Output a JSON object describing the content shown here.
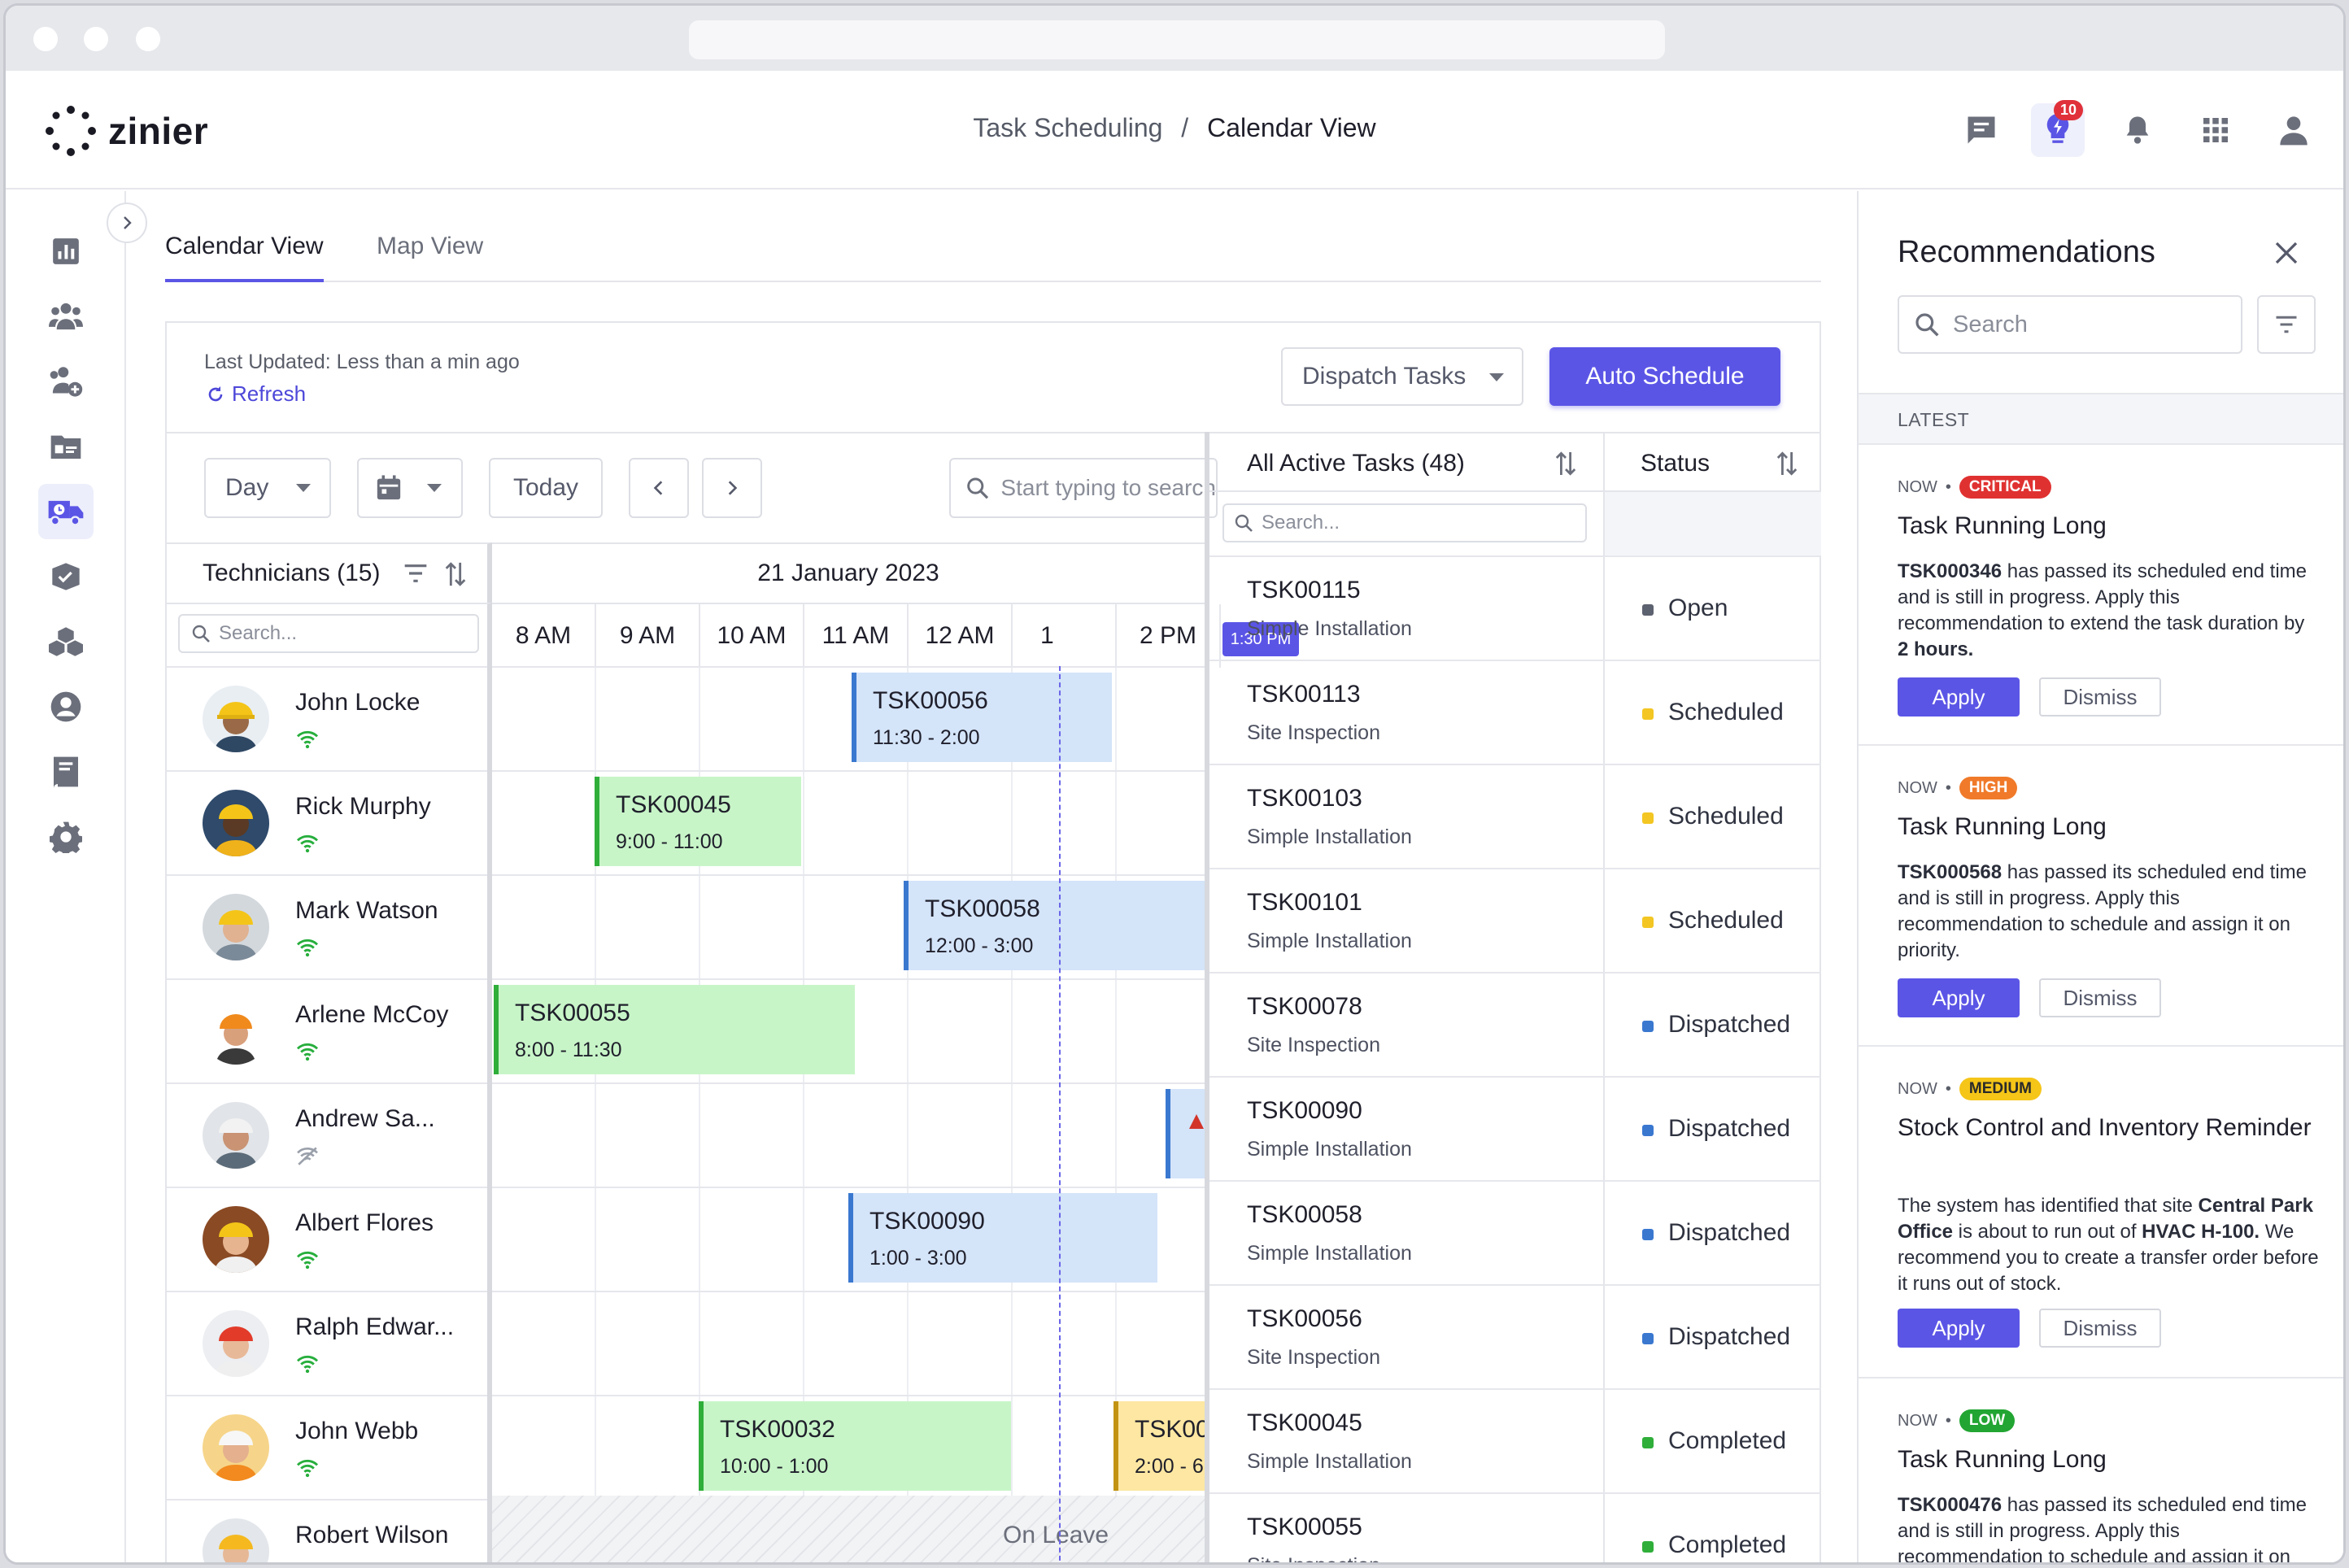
{
  "header": {
    "logo_text": "zinier",
    "breadcrumb_parent": "Task Scheduling",
    "breadcrumb_sep": "/",
    "breadcrumb_current": "Calendar View",
    "notification_count": "10"
  },
  "tabs": [
    {
      "label": "Calendar View",
      "active": true
    },
    {
      "label": "Map View",
      "active": false
    }
  ],
  "panel": {
    "last_updated": "Last Updated: Less than a min ago",
    "refresh": "Refresh",
    "dispatch_label": "Dispatch Tasks",
    "auto_schedule": "Auto Schedule"
  },
  "toolbar": {
    "view_mode": "Day",
    "today": "Today",
    "search_placeholder": "Start typing to search"
  },
  "scheduler": {
    "technicians_header": "Technicians (15)",
    "tech_search_placeholder": "Search...",
    "date": "21 January 2023",
    "hours": [
      "8 AM",
      "9 AM",
      "10 AM",
      "11 AM",
      "12 AM",
      "1",
      "2 PM"
    ],
    "now_label": "1:30 PM",
    "leave_label": "On Leave",
    "technicians": [
      {
        "name": "John Locke",
        "online": true
      },
      {
        "name": "Rick Murphy",
        "online": true
      },
      {
        "name": "Mark Watson",
        "online": true
      },
      {
        "name": "Arlene McCoy",
        "online": true
      },
      {
        "name": "Andrew Sa...",
        "online": false
      },
      {
        "name": "Albert Flores",
        "online": true
      },
      {
        "name": "Ralph Edwar...",
        "online": true
      },
      {
        "name": "John Webb",
        "online": true
      },
      {
        "name": "Robert Wilson",
        "online": false
      }
    ],
    "tasks": [
      {
        "id": "TSK00056",
        "time": "11:30 - 2:00",
        "color": "blue",
        "row": 0
      },
      {
        "id": "TSK00045",
        "time": "9:00 - 11:00",
        "color": "green",
        "row": 1
      },
      {
        "id": "TSK00058",
        "time": "12:00 - 3:00",
        "color": "blue",
        "row": 2
      },
      {
        "id": "TSK00055",
        "time": "8:00 - 11:30",
        "color": "green",
        "row": 3
      },
      {
        "id": "TSK00090",
        "time": "1:00 - 3:00",
        "color": "blue",
        "row": 5
      },
      {
        "id": "TSK00032",
        "time": "10:00 - 1:00",
        "color": "green",
        "row": 7
      },
      {
        "id": "TSK00",
        "time": "2:00 - 6",
        "color": "yellow",
        "row": 7
      }
    ]
  },
  "active_tasks": {
    "header": "All Active Tasks (48)",
    "status_header": "Status",
    "search_placeholder": "Search...",
    "rows": [
      {
        "id": "TSK00115",
        "type": "Simple Installation",
        "status": "Open",
        "color": "#5d6270"
      },
      {
        "id": "TSK00113",
        "type": "Site Inspection",
        "status": "Scheduled",
        "color": "#f3c623"
      },
      {
        "id": "TSK00103",
        "type": "Simple Installation",
        "status": "Scheduled",
        "color": "#f3c623"
      },
      {
        "id": "TSK00101",
        "type": "Simple Installation",
        "status": "Scheduled",
        "color": "#f3c623"
      },
      {
        "id": "TSK00078",
        "type": "Site Inspection",
        "status": "Dispatched",
        "color": "#3a78d0"
      },
      {
        "id": "TSK00090",
        "type": "Simple Installation",
        "status": "Dispatched",
        "color": "#3a78d0"
      },
      {
        "id": "TSK00058",
        "type": "Simple Installation",
        "status": "Dispatched",
        "color": "#3a78d0"
      },
      {
        "id": "TSK00056",
        "type": "Site Inspection",
        "status": "Dispatched",
        "color": "#3a78d0"
      },
      {
        "id": "TSK00045",
        "type": "Simple Installation",
        "status": "Completed",
        "color": "#2fae3a"
      },
      {
        "id": "TSK00055",
        "type": "Site Inspection",
        "status": "Completed",
        "color": "#2fae3a"
      }
    ]
  },
  "recommendations": {
    "title": "Recommendations",
    "search_placeholder": "Search",
    "section": "LATEST",
    "apply": "Apply",
    "dismiss": "Dismiss",
    "cards": [
      {
        "time": "NOW",
        "priority": "CRITICAL",
        "color": "#e03131",
        "title": "Task Running Long"
      },
      {
        "time": "NOW",
        "priority": "HIGH",
        "color": "#f07a2a",
        "title": "Task Running Long"
      },
      {
        "time": "NOW",
        "priority": "MEDIUM",
        "color": "#f5c518",
        "title": "Stock Control and Inventory Reminder"
      },
      {
        "time": "NOW",
        "priority": "LOW",
        "color": "#22a532",
        "title": "Task Running Long"
      }
    ],
    "body1": {
      "a": "TSK000346",
      "b": " has passed its scheduled end time and is still in progress. Apply this recommendation to extend the task duration by ",
      "c": "2 hours."
    },
    "body2": {
      "a": "TSK000568",
      "b": " has passed its scheduled end time and is still in progress. Apply this recommendation to schedule and assign it on priority."
    },
    "body3": {
      "a": "The system has identified that site ",
      "b": "Central Park Office",
      "c": " is about to run out of ",
      "d": "HVAC H-100.",
      "e": " We recommend you to create a transfer order before it runs out of stock."
    },
    "body4": {
      "a": "TSK000476",
      "b": " has passed its scheduled end time and is still in progress. Apply this recommendation to schedule and assign it on"
    }
  }
}
